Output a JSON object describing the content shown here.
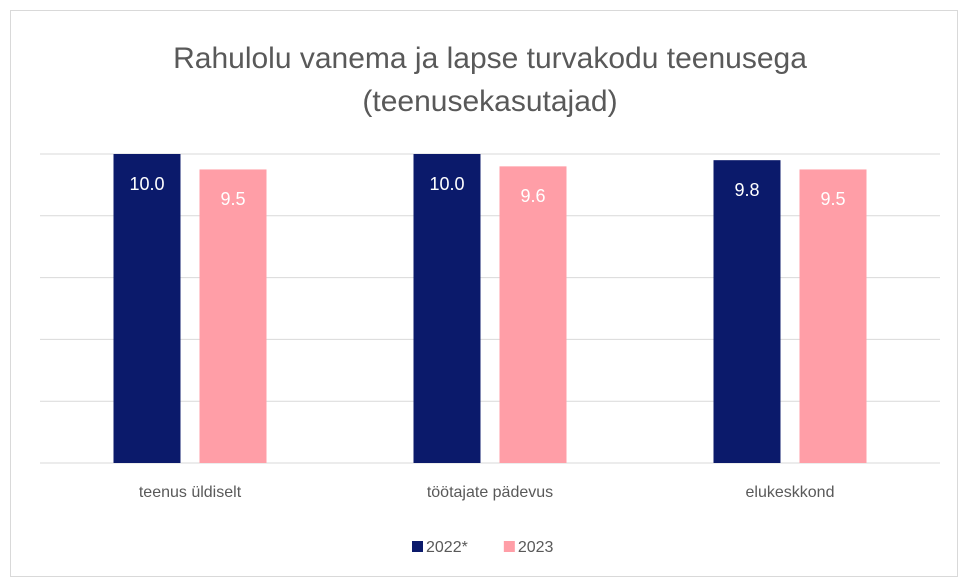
{
  "chart_data": {
    "type": "bar",
    "title": [
      "Rahulolu vanema ja lapse turvakodu teenusega",
      "(teenusekasutajad)"
    ],
    "categories": [
      "teenus üldiselt",
      "töötajate pädevus",
      "elukeskkond"
    ],
    "series": [
      {
        "name": "2022*",
        "color": "#0b1a6b",
        "values": [
          10,
          10,
          9.8
        ],
        "value_labels": [
          "10.0",
          "10.0",
          "9.8"
        ]
      },
      {
        "name": "2023",
        "color": "#ff9ea7",
        "values": [
          9.5,
          9.6,
          9.5
        ]
      }
    ],
    "ylim": [
      0,
      10
    ],
    "yticks": [
      0,
      2,
      4,
      6,
      8,
      10
    ],
    "grid": true,
    "legend": "bottom"
  }
}
